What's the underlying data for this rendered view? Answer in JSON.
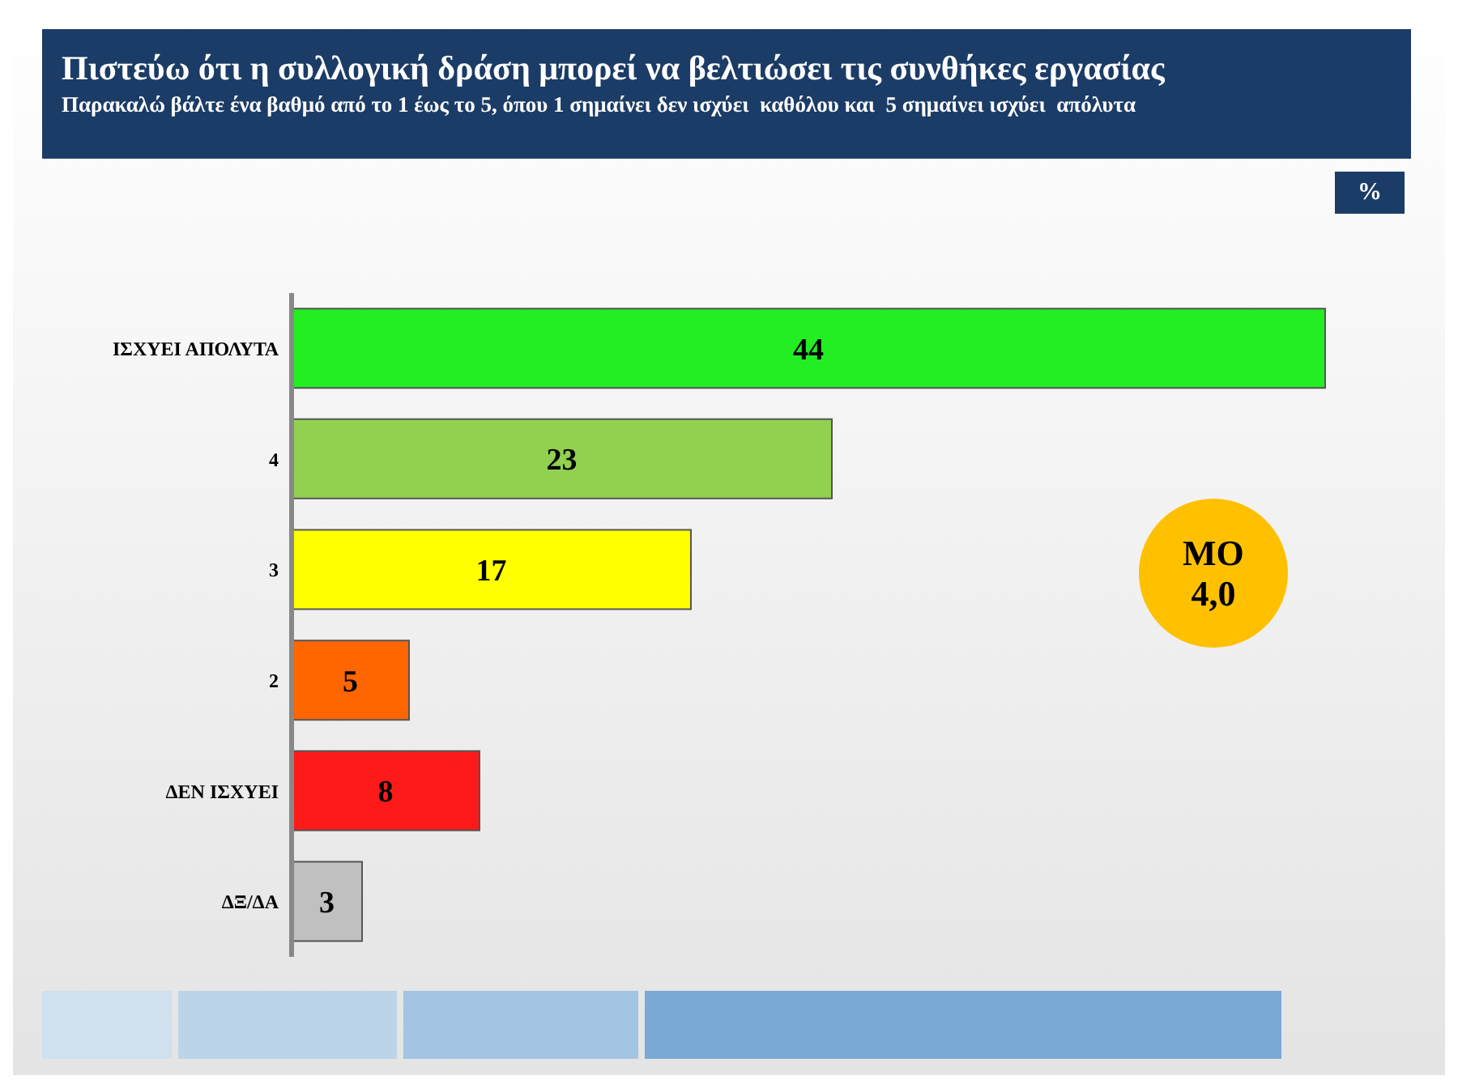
{
  "chart_data": {
    "type": "bar",
    "orientation": "horizontal",
    "title": "Πιστεύω ότι η συλλογική δράση μπορεί να βελτιώσει τις συνθήκες εργασίας",
    "subtitle": "Παρακαλώ βάλτε ένα βαθμό από το 1 έως το 5, όπου 1 σημαίνει δεν ισχύει  καθόλου και  5 σημαίνει ισχύει  απόλυτα",
    "categories": [
      "ΙΣΧΥΕΙ ΑΠΟΛΥΤΑ",
      "4",
      "3",
      "2",
      "ΔΕΝ ΙΣΧΥΕΙ",
      "ΔΞ/ΔΑ"
    ],
    "values": [
      44,
      23,
      17,
      5,
      8,
      3
    ],
    "colors": [
      "#22ee22",
      "#92d050",
      "#ffff00",
      "#ff6600",
      "#ff1a1a",
      "#c0c0c0"
    ],
    "data_labels": true,
    "legend": false,
    "grid": false,
    "annotations": [
      "%",
      "ΜΟ 4,0"
    ]
  }
}
